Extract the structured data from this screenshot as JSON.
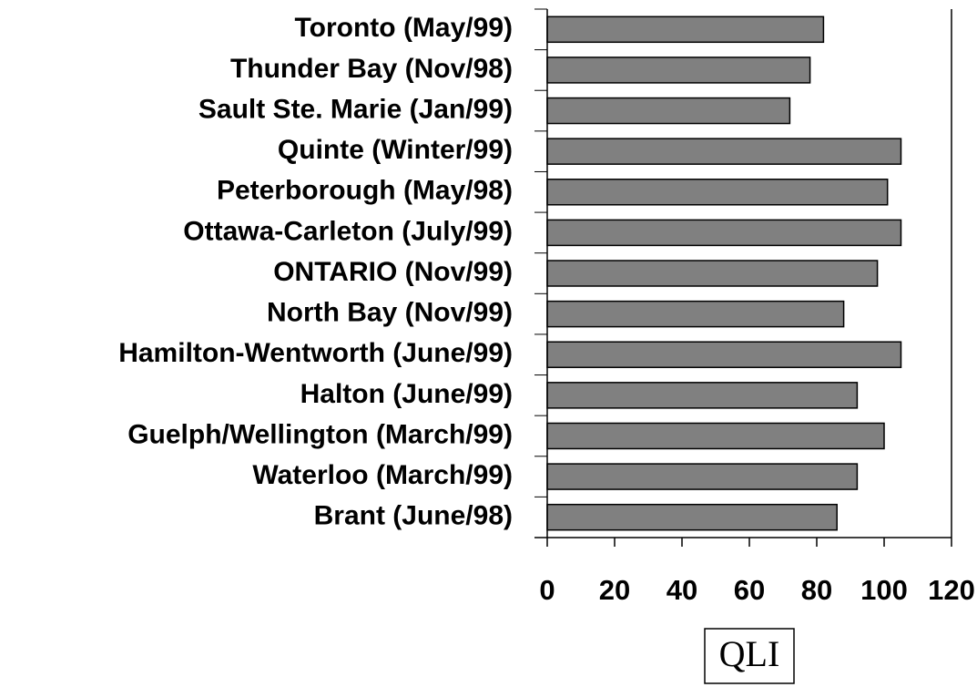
{
  "chart_data": {
    "type": "bar",
    "orientation": "horizontal",
    "categories": [
      "Toronto (May/99)",
      "Thunder Bay (Nov/98)",
      "Sault Ste. Marie (Jan/99)",
      "Quinte (Winter/99)",
      "Peterborough (May/98)",
      "Ottawa-Carleton (July/99)",
      "ONTARIO (Nov/99)",
      "North Bay (Nov/99)",
      "Hamilton-Wentworth (June/99)",
      "Halton (June/99)",
      "Guelph/Wellington (March/99)",
      "Waterloo (March/99)",
      "Brant (June/98)"
    ],
    "values": [
      82,
      78,
      72,
      105,
      101,
      105,
      98,
      88,
      105,
      92,
      100,
      92,
      86
    ],
    "color": "#808080",
    "xlabel": "QLI",
    "xlim": [
      0,
      120
    ],
    "xticks": [
      0,
      20,
      40,
      60,
      80,
      100,
      120
    ],
    "grid": false
  }
}
